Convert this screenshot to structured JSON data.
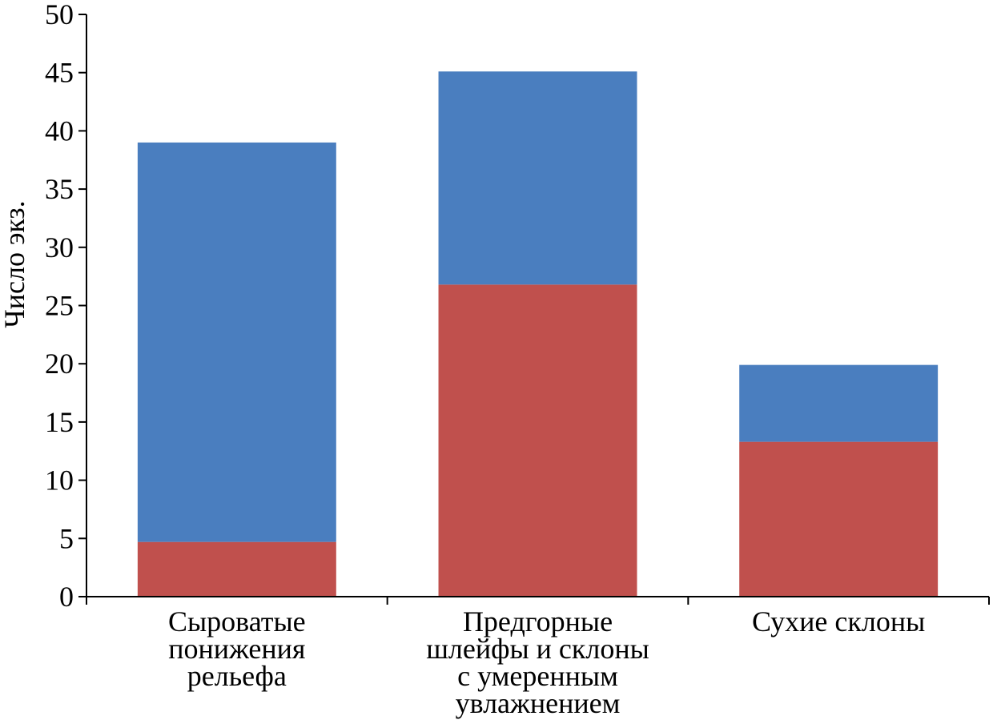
{
  "chart_data": {
    "type": "bar",
    "stacked": true,
    "title": "",
    "xlabel": "",
    "ylabel": "Число экз.",
    "ylim": [
      0,
      50
    ],
    "yticks": [
      0,
      5,
      10,
      15,
      20,
      25,
      30,
      35,
      40,
      45,
      50
    ],
    "grid": false,
    "legend": "none",
    "categories": [
      [
        "Сыроватые",
        "понижения",
        "рельефа"
      ],
      [
        "Предгорные",
        "шлейфы и склоны",
        "с умеренным",
        "увлажнением"
      ],
      [
        "Сухие склоны"
      ]
    ],
    "series": [
      {
        "color": "#c0504d",
        "values": [
          4.7,
          26.8,
          13.3
        ]
      },
      {
        "color": "#4a7ebf",
        "values": [
          34.3,
          18.3,
          6.6
        ]
      }
    ]
  }
}
